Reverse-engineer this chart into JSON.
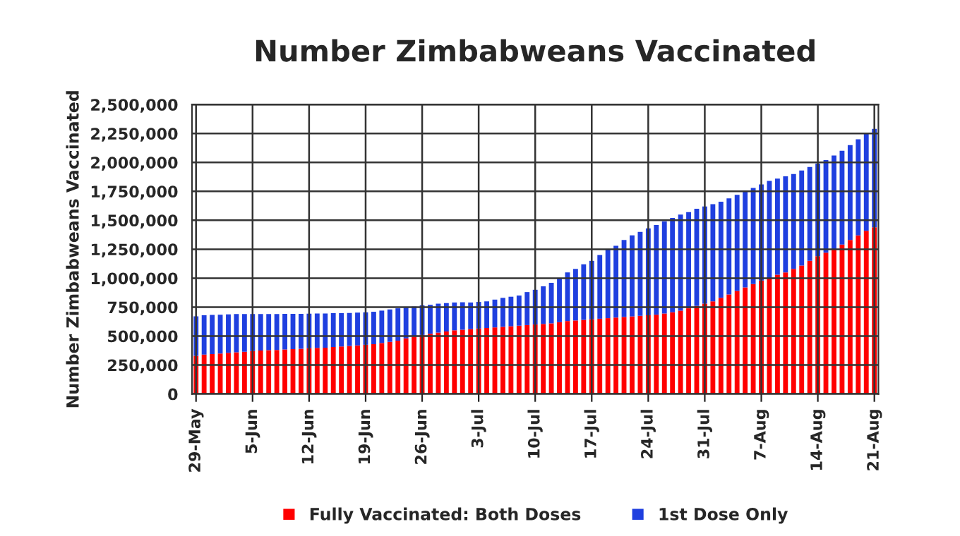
{
  "chart_data": {
    "type": "bar",
    "title": "Number Zimbabweans Vaccinated",
    "ylabel": "Number Zimbabweans Vaccinated",
    "categories": [
      "29-May",
      null,
      null,
      null,
      null,
      null,
      null,
      "5-Jun",
      null,
      null,
      null,
      null,
      null,
      null,
      "12-Jun",
      null,
      null,
      null,
      null,
      null,
      null,
      "19-Jun",
      null,
      null,
      null,
      null,
      null,
      null,
      "26-Jun",
      null,
      null,
      null,
      null,
      null,
      null,
      "3-Jul",
      null,
      null,
      null,
      null,
      null,
      null,
      "10-Jul",
      null,
      null,
      null,
      null,
      null,
      null,
      "17-Jul",
      null,
      null,
      null,
      null,
      null,
      null,
      "24-Jul",
      null,
      null,
      null,
      null,
      null,
      null,
      "31-Jul",
      null,
      null,
      null,
      null,
      null,
      null,
      "7-Aug",
      null,
      null,
      null,
      null,
      null,
      null,
      "14-Aug",
      null,
      null,
      null,
      null,
      null,
      null,
      "21-Aug"
    ],
    "stacked": true,
    "series": [
      {
        "name": "Fully Vaccinated: Both Doses",
        "color": "#ff0000",
        "values": [
          330000,
          340000,
          345000,
          350000,
          355000,
          360000,
          365000,
          370000,
          375000,
          378000,
          380000,
          385000,
          388000,
          390000,
          395000,
          398000,
          400000,
          405000,
          410000,
          415000,
          420000,
          425000,
          430000,
          440000,
          450000,
          460000,
          480000,
          495000,
          510000,
          520000,
          530000,
          540000,
          550000,
          555000,
          560000,
          565000,
          570000,
          575000,
          580000,
          585000,
          590000,
          595000,
          600000,
          605000,
          610000,
          620000,
          630000,
          635000,
          640000,
          645000,
          650000,
          655000,
          660000,
          665000,
          670000,
          675000,
          680000,
          685000,
          695000,
          705000,
          720000,
          740000,
          760000,
          780000,
          800000,
          830000,
          860000,
          890000,
          920000,
          950000,
          980000,
          1000000,
          1030000,
          1050000,
          1080000,
          1110000,
          1150000,
          1190000,
          1220000,
          1250000,
          1290000,
          1330000,
          1370000,
          1410000,
          1440000
        ]
      },
      {
        "name": "1st Dose Only",
        "color": "#1f3fdf",
        "values": [
          340000,
          340000,
          338000,
          335000,
          333000,
          330000,
          325000,
          320000,
          315000,
          312000,
          310000,
          307000,
          304000,
          302000,
          298000,
          297000,
          295000,
          293000,
          288000,
          285000,
          282000,
          280000,
          280000,
          280000,
          280000,
          280000,
          265000,
          260000,
          255000,
          250000,
          250000,
          245000,
          240000,
          237000,
          230000,
          230000,
          230000,
          240000,
          250000,
          255000,
          260000,
          285000,
          300000,
          325000,
          350000,
          380000,
          420000,
          445000,
          480000,
          505000,
          550000,
          595000,
          620000,
          665000,
          700000,
          725000,
          750000,
          775000,
          795000,
          815000,
          830000,
          830000,
          840000,
          840000,
          840000,
          830000,
          830000,
          830000,
          830000,
          830000,
          830000,
          840000,
          830000,
          830000,
          820000,
          820000,
          810000,
          800000,
          800000,
          810000,
          810000,
          820000,
          830000,
          840000,
          850000
        ]
      }
    ],
    "ylim": [
      0,
      2500000
    ],
    "yticks": [
      {
        "value": 0,
        "label": "0"
      },
      {
        "value": 250000,
        "label": "250,000"
      },
      {
        "value": 500000,
        "label": "500,000"
      },
      {
        "value": 750000,
        "label": "750,000"
      },
      {
        "value": 1000000,
        "label": "1,000,000"
      },
      {
        "value": 1250000,
        "label": "1,250,000"
      },
      {
        "value": 1500000,
        "label": "1,500,000"
      },
      {
        "value": 1750000,
        "label": "1,750,000"
      },
      {
        "value": 2000000,
        "label": "2,000,000"
      },
      {
        "value": 2250000,
        "label": "2,250,000"
      },
      {
        "value": 2500000,
        "label": "2,500,000"
      }
    ],
    "grid": true,
    "legend": "bottom"
  }
}
